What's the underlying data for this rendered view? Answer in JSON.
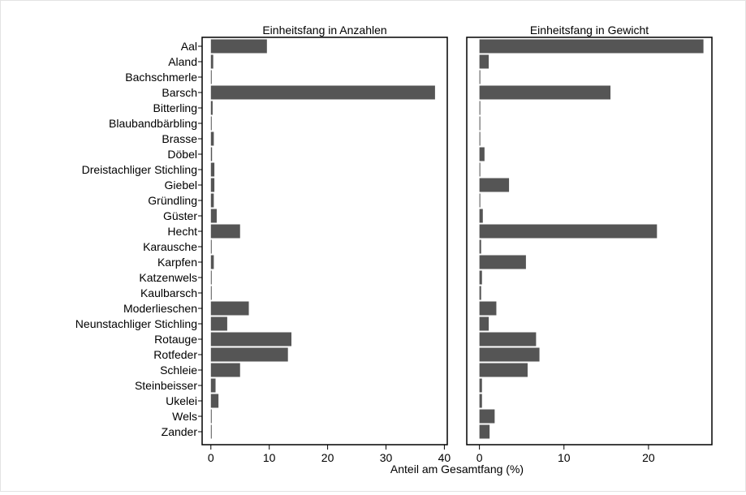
{
  "chart_data": {
    "type": "bar",
    "orientation": "horizontal",
    "xlabel": "Anteil am Gesamtfang (%)",
    "bar_color": "#555555",
    "categories": [
      "Aal",
      "Aland",
      "Bachschmerle",
      "Barsch",
      "Bitterling",
      "Blaubandbärbling",
      "Brasse",
      "Döbel",
      "Dreistachliger Stichling",
      "Giebel",
      "Gründling",
      "Güster",
      "Hecht",
      "Karausche",
      "Karpfen",
      "Katzenwels",
      "Kaulbarsch",
      "Moderlieschen",
      "Neunstachliger Stichling",
      "Rotauge",
      "Rotfeder",
      "Schleie",
      "Steinbeisser",
      "Ukelei",
      "Wels",
      "Zander"
    ],
    "panels": [
      {
        "title": "Einheitsfang in Anzahlen",
        "xlim": [
          -1.5,
          40.5
        ],
        "xticks": [
          0,
          10,
          20,
          30,
          40
        ],
        "values": [
          9.6,
          0.4,
          0.1,
          38.4,
          0.3,
          0.1,
          0.5,
          0.2,
          0.6,
          0.6,
          0.5,
          1.0,
          5.0,
          0.1,
          0.5,
          0.1,
          0.1,
          6.5,
          2.8,
          13.8,
          13.2,
          5.0,
          0.8,
          1.3,
          0.1,
          0.1
        ]
      },
      {
        "title": "Einheitsfang in Gewicht",
        "xlim": [
          -1.5,
          27.5
        ],
        "xticks": [
          0,
          10,
          20
        ],
        "values": [
          26.5,
          1.1,
          0.1,
          15.5,
          0.1,
          0.1,
          0.1,
          0.6,
          0.1,
          3.5,
          0.1,
          0.4,
          21.0,
          0.2,
          5.5,
          0.3,
          0.2,
          2.0,
          1.1,
          6.7,
          7.1,
          5.7,
          0.3,
          0.3,
          1.8,
          1.2
        ]
      }
    ]
  }
}
